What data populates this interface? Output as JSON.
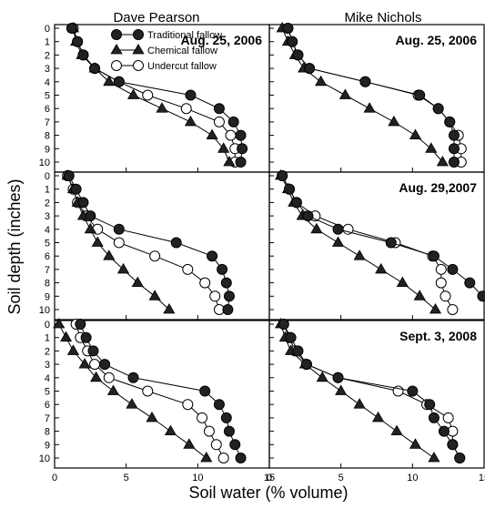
{
  "figure": {
    "col_titles": [
      "Dave Pearson",
      "Mike Nichols"
    ],
    "ylabel": "Soil depth (inches)",
    "xlabel": "Soil water (% volume)"
  },
  "legend": [
    {
      "label": "Traditional fallow",
      "marker": "circle-filled"
    },
    {
      "label": "Chemical fallow",
      "marker": "triangle-filled"
    },
    {
      "label": "Undercut fallow",
      "marker": "circle-open"
    }
  ],
  "chart_data": [
    {
      "type": "line",
      "title": "Aug. 25, 2006",
      "grower": "Dave Pearson",
      "x_range": [
        0,
        15
      ],
      "y_range": [
        0,
        10
      ],
      "y_inverted": true,
      "y_ticks": [
        0,
        1,
        2,
        3,
        4,
        5,
        6,
        7,
        8,
        9,
        10
      ],
      "x_ticks": [
        0,
        5,
        10,
        15
      ],
      "series": [
        {
          "name": "Traditional fallow",
          "x": [
            1.2,
            1.6,
            2.0,
            2.8,
            4.5,
            9.5,
            11.5,
            12.5,
            13.0,
            13.1,
            13.0
          ],
          "y": [
            0,
            1,
            2,
            3,
            4,
            5,
            6,
            7,
            8,
            9,
            10
          ]
        },
        {
          "name": "Chemical fallow",
          "x": [
            1.3,
            1.5,
            1.9,
            2.8,
            3.8,
            5.5,
            7.5,
            9.5,
            11.0,
            11.8,
            12.2
          ],
          "y": [
            0,
            1,
            2,
            3,
            4,
            5,
            6,
            7,
            8,
            9,
            10
          ]
        },
        {
          "name": "Undercut fallow",
          "x": [
            1.3,
            1.6,
            2.0,
            2.8,
            4.5,
            6.5,
            9.2,
            11.5,
            12.3,
            12.6,
            12.6
          ],
          "y": [
            0,
            1,
            2,
            3,
            4,
            5,
            6,
            7,
            8,
            9,
            10
          ]
        }
      ]
    },
    {
      "type": "line",
      "title": "Aug. 25, 2006",
      "grower": "Mike Nichols",
      "x_range": [
        0,
        15
      ],
      "y_range": [
        0,
        10
      ],
      "y_inverted": true,
      "y_ticks": [
        0,
        1,
        2,
        3,
        4,
        5,
        6,
        7,
        8,
        9,
        10
      ],
      "x_ticks": [
        0,
        5,
        10,
        15
      ],
      "series": [
        {
          "name": "Traditional fallow",
          "x": [
            1.3,
            1.6,
            2.0,
            2.8,
            6.7,
            10.5,
            11.8,
            12.6,
            12.9,
            12.9,
            12.9
          ],
          "y": [
            0,
            1,
            2,
            3,
            4,
            5,
            6,
            7,
            8,
            9,
            10
          ]
        },
        {
          "name": "Chemical fallow",
          "x": [
            0.9,
            1.3,
            1.8,
            2.4,
            3.6,
            5.3,
            7.0,
            8.7,
            10.2,
            11.3,
            12.1
          ],
          "y": [
            0,
            1,
            2,
            3,
            4,
            5,
            6,
            7,
            8,
            9,
            10
          ]
        },
        {
          "name": "Undercut fallow",
          "x": [
            1.3,
            1.6,
            2.0,
            2.8,
            6.7,
            10.4,
            11.8,
            12.6,
            13.2,
            13.4,
            13.4
          ],
          "y": [
            0,
            1,
            2,
            3,
            4,
            5,
            6,
            7,
            8,
            9,
            10
          ]
        }
      ]
    },
    {
      "type": "line",
      "title": "",
      "grower": "Dave Pearson",
      "x_range": [
        0,
        15
      ],
      "y_range": [
        0,
        10
      ],
      "y_inverted": true,
      "y_ticks": [
        0,
        1,
        2,
        3,
        4,
        5,
        6,
        7,
        8,
        9,
        10
      ],
      "x_ticks": [
        0,
        5,
        10,
        15
      ],
      "series": [
        {
          "name": "Traditional fallow",
          "x": [
            1.0,
            1.5,
            2.0,
            2.5,
            4.5,
            8.5,
            11.0,
            11.7,
            12.0,
            12.2,
            12.1
          ],
          "y": [
            0,
            1,
            2,
            3,
            4,
            5,
            6,
            7,
            8,
            9,
            10
          ]
        },
        {
          "name": "Chemical fallow",
          "x": [
            0.9,
            1.3,
            1.6,
            2.0,
            2.5,
            3.0,
            3.8,
            4.8,
            5.8,
            7.0,
            8.0
          ],
          "y": [
            0,
            1,
            2,
            3,
            4,
            5,
            6,
            7,
            8,
            9,
            10
          ]
        },
        {
          "name": "Undercut fallow",
          "x": [
            0.9,
            1.3,
            1.6,
            2.2,
            3.0,
            4.5,
            7.0,
            9.3,
            10.5,
            11.2,
            11.5
          ],
          "y": [
            0,
            1,
            2,
            3,
            4,
            5,
            6,
            7,
            8,
            9,
            10
          ]
        }
      ]
    },
    {
      "type": "line",
      "title": "Aug. 29,2007",
      "grower": "Mike Nichols",
      "x_range": [
        0,
        15
      ],
      "y_range": [
        0,
        10
      ],
      "y_inverted": true,
      "y_ticks": [
        0,
        1,
        2,
        3,
        4,
        5,
        6,
        7,
        8,
        9,
        10
      ],
      "x_ticks": [
        0,
        5,
        10,
        15
      ],
      "series": [
        {
          "name": "Traditional fallow",
          "x": [
            0.9,
            1.4,
            1.9,
            2.7,
            4.8,
            8.5,
            11.5,
            12.8,
            14.0,
            14.9,
            15.7
          ],
          "y": [
            0,
            1,
            2,
            3,
            4,
            5,
            6,
            7,
            8,
            9,
            10
          ]
        },
        {
          "name": "Chemical fallow",
          "x": [
            0.8,
            1.3,
            1.7,
            2.3,
            3.3,
            4.8,
            6.3,
            7.8,
            9.3,
            10.5,
            11.6
          ],
          "y": [
            0,
            1,
            2,
            3,
            4,
            5,
            6,
            7,
            8,
            9,
            10
          ]
        },
        {
          "name": "Undercut fallow",
          "x": [
            0.9,
            1.4,
            1.9,
            3.2,
            5.5,
            8.8,
            11.4,
            12.0,
            12.0,
            12.3,
            12.8
          ],
          "y": [
            0,
            1,
            2,
            3,
            4,
            5,
            6,
            7,
            8,
            9,
            10
          ]
        }
      ]
    },
    {
      "type": "line",
      "title": "",
      "grower": "Dave Pearson",
      "x_range": [
        0,
        15
      ],
      "y_range": [
        0,
        10
      ],
      "y_inverted": true,
      "y_ticks": [
        0,
        1,
        2,
        3,
        4,
        5,
        6,
        7,
        8,
        9,
        10
      ],
      "x_ticks": [
        0,
        5,
        10,
        15
      ],
      "series": [
        {
          "name": "Traditional fallow",
          "x": [
            1.8,
            2.2,
            2.7,
            3.5,
            5.5,
            10.5,
            11.5,
            12.0,
            12.2,
            12.6,
            13.0
          ],
          "y": [
            0,
            1,
            2,
            3,
            4,
            5,
            6,
            7,
            8,
            9,
            10
          ]
        },
        {
          "name": "Chemical fallow",
          "x": [
            0.3,
            0.8,
            1.3,
            2.1,
            2.9,
            4.1,
            5.4,
            6.8,
            8.1,
            9.4,
            10.6
          ],
          "y": [
            0,
            1,
            2,
            3,
            4,
            5,
            6,
            7,
            8,
            9,
            10
          ]
        },
        {
          "name": "Undercut fallow",
          "x": [
            1.5,
            1.8,
            2.3,
            2.8,
            3.8,
            6.5,
            9.3,
            10.3,
            10.8,
            11.3,
            11.8
          ],
          "y": [
            0,
            1,
            2,
            3,
            4,
            5,
            6,
            7,
            8,
            9,
            10
          ]
        }
      ]
    },
    {
      "type": "line",
      "title": "Sept. 3, 2008",
      "grower": "Mike Nichols",
      "x_range": [
        0,
        15
      ],
      "y_range": [
        0,
        10
      ],
      "y_inverted": true,
      "y_ticks": [
        0,
        1,
        2,
        3,
        4,
        5,
        6,
        7,
        8,
        9,
        10
      ],
      "x_ticks": [
        0,
        5,
        10,
        15
      ],
      "series": [
        {
          "name": "Traditional fallow",
          "x": [
            1.0,
            1.5,
            2.0,
            2.6,
            4.8,
            10.0,
            11.2,
            11.5,
            12.2,
            12.8,
            13.3
          ],
          "y": [
            0,
            1,
            2,
            3,
            4,
            5,
            6,
            7,
            8,
            9,
            10
          ]
        },
        {
          "name": "Chemical fallow",
          "x": [
            0.8,
            1.1,
            1.5,
            2.5,
            3.7,
            5.0,
            6.3,
            7.6,
            8.9,
            10.2,
            11.5
          ],
          "y": [
            0,
            1,
            2,
            3,
            4,
            5,
            6,
            7,
            8,
            9,
            10
          ]
        },
        {
          "name": "Undercut fallow",
          "x": [
            1.0,
            1.4,
            1.8,
            2.6,
            4.8,
            9.0,
            11.0,
            12.5,
            12.8,
            12.8,
            13.3
          ],
          "y": [
            0,
            1,
            2,
            3,
            4,
            5,
            6,
            7,
            8,
            9,
            10
          ]
        }
      ]
    }
  ]
}
